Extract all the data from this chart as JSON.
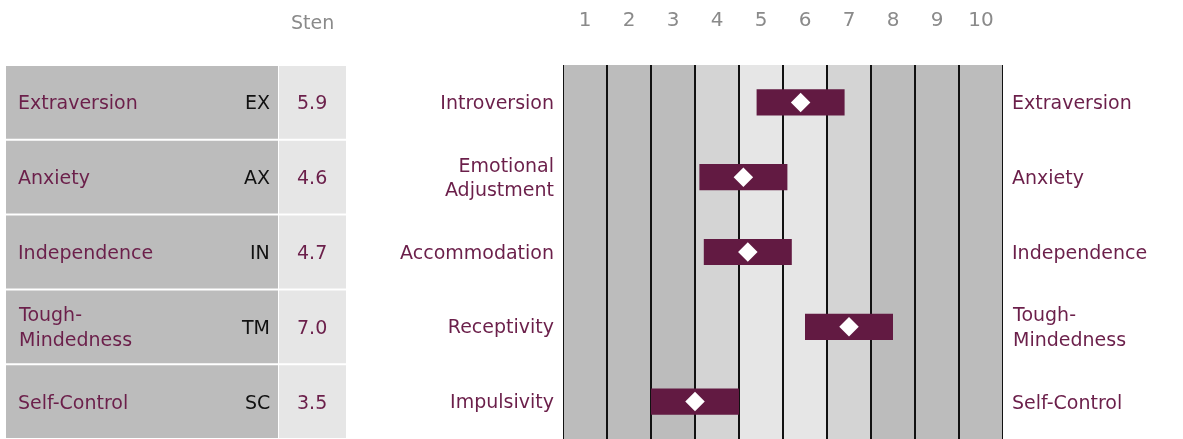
{
  "chart_data": {
    "type": "bar",
    "orientation": "horizontal",
    "xlabel": "Sten",
    "categories": [
      "Introversion",
      "Emotional\nAdjustment",
      "Accommodation",
      "Receptivity",
      "Impulsivity"
    ],
    "series": [
      {
        "color": "#621a42",
        "base": [
          4.9,
          3.6,
          3.7,
          6.0,
          2.5
        ],
        "values": [
          2,
          2,
          2,
          2,
          2
        ]
      },
      {
        "type": "scatter",
        "color": "#ffffff",
        "marker": "diamond",
        "values": [
          5.9,
          4.6,
          4.7,
          7.0,
          3.5
        ]
      }
    ],
    "xlim": [
      0.5,
      10.5
    ],
    "xticks": [
      1,
      2,
      3,
      4,
      5,
      6,
      7,
      8,
      9,
      10
    ],
    "bands": [
      {
        "axis": "x",
        "from": 0.5,
        "to": 3.5,
        "color": "#bcbcbc"
      },
      {
        "axis": "x",
        "from": 3.5,
        "to": 4.5,
        "color": "#d4d4d4"
      },
      {
        "axis": "x",
        "from": 4.5,
        "to": 6.5,
        "color": "#e6e6e6"
      },
      {
        "axis": "x",
        "from": 6.5,
        "to": 7.5,
        "color": "#d4d4d4"
      },
      {
        "axis": "x",
        "from": 7.5,
        "to": 10.5,
        "color": "#bcbcbc"
      }
    ],
    "ref_lines": [
      {
        "axis": "x",
        "value": 0.5,
        "color": "#111111"
      },
      {
        "axis": "x",
        "value": 1.5,
        "color": "#111111"
      },
      {
        "axis": "x",
        "value": 2.5,
        "color": "#111111"
      },
      {
        "axis": "x",
        "value": 3.5,
        "color": "#111111"
      },
      {
        "axis": "x",
        "value": 4.5,
        "color": "#111111"
      },
      {
        "axis": "x",
        "value": 5.5,
        "color": "#111111"
      },
      {
        "axis": "x",
        "value": 6.5,
        "color": "#111111"
      },
      {
        "axis": "x",
        "value": 7.5,
        "color": "#111111"
      },
      {
        "axis": "x",
        "value": 8.5,
        "color": "#111111"
      },
      {
        "axis": "x",
        "value": 9.5,
        "color": "#111111"
      },
      {
        "axis": "x",
        "value": 10.5,
        "color": "#111111"
      }
    ],
    "annotations": [
      "Extraversion",
      "EX",
      "5.9",
      "Anxiety",
      "AX",
      "4.6",
      "Independence",
      "IN",
      "4.7",
      "Tough-\nMindedness",
      "TM",
      "7.0",
      "Self-Control",
      "SC",
      "3.5",
      "Extraversion",
      "Anxiety",
      "Independence",
      "Tough-\nMindedness",
      "Self-Control"
    ],
    "grid": false
  }
}
